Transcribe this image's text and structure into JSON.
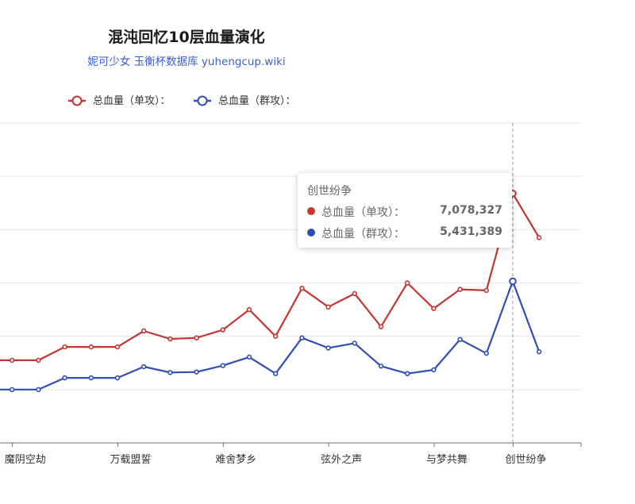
{
  "chart_data": {
    "type": "line",
    "title": "混沌回忆10层血量演化",
    "subtitle": "妮可少女 玉衡杯数据库 yuhengcup.wiki",
    "categories": [
      "",
      "魔阴空劫",
      "",
      "",
      "",
      "万载盟誓",
      "",
      "",
      "",
      "难舍梦乡",
      "",
      "",
      "",
      "弦外之声",
      "",
      "",
      "",
      "与梦共舞",
      "",
      "",
      "创世纷争",
      ""
    ],
    "x_tick_labels": [
      "魔阴空劫",
      "万载盟誓",
      "难舍梦乡",
      "弦外之声",
      "与梦共舞"
    ],
    "series": [
      {
        "name": "总血量（单攻）",
        "color": "#c23531",
        "values": [
          3950000,
          3950000,
          3950000,
          4200000,
          4200000,
          4200000,
          4500000,
          4350000,
          4370000,
          4520000,
          4900000,
          4400000,
          5300000,
          4950000,
          5200000,
          4580000,
          5400000,
          4920000,
          5280000,
          5260000,
          7078327,
          6250000
        ]
      },
      {
        "name": "总血量（群攻）",
        "color": "#2f4eb5",
        "values": [
          3400000,
          3400000,
          3400000,
          3620000,
          3620000,
          3620000,
          3830000,
          3720000,
          3730000,
          3850000,
          4010000,
          3700000,
          4370000,
          4180000,
          4270000,
          3840000,
          3700000,
          3770000,
          4340000,
          4080000,
          5431389,
          4110000
        ]
      }
    ],
    "ylim": [
      2400000,
      8400000
    ],
    "y_grid_step": 1000000,
    "grid": true,
    "legend_position": "top-left",
    "hover_index": 20
  },
  "legend": {
    "item1": "总血量（单攻）：",
    "item2": "总血量（群攻）："
  },
  "tooltip": {
    "title": "创世纷争",
    "row1_name": "总血量（单攻）：",
    "row1_value": "7,078,327",
    "row2_name": "总血量（群攻）：",
    "row2_value": "5,431,389"
  }
}
